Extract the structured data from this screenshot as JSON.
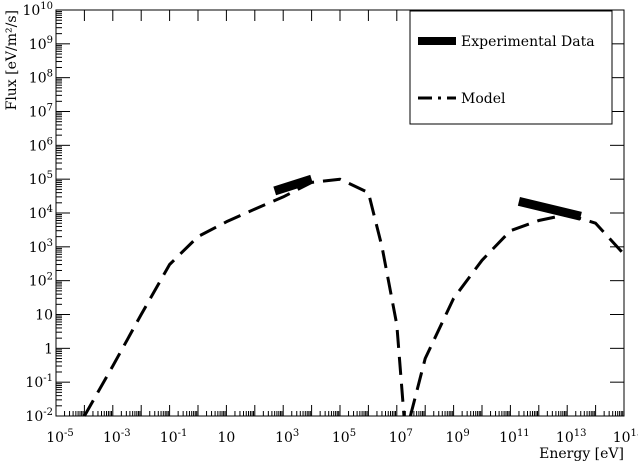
{
  "chart_data": {
    "type": "line",
    "title": "",
    "xlabel": "Energy [eV]",
    "ylabel": "Flux [eV/m²/s]",
    "x_scale": "log",
    "y_scale": "log",
    "xlim": [
      1e-05,
      1000000000000000.0
    ],
    "ylim": [
      0.01,
      10000000000.0
    ],
    "grid": false,
    "legend_position": "top-right",
    "x_ticks": [
      {
        "value": 1e-05,
        "base": "10",
        "exp": "-5"
      },
      {
        "value": 0.001,
        "base": "10",
        "exp": "-3"
      },
      {
        "value": 0.1,
        "base": "10",
        "exp": "-1"
      },
      {
        "value": 10,
        "base": "10",
        "exp": ""
      },
      {
        "value": 1000.0,
        "base": "10",
        "exp": "3"
      },
      {
        "value": 100000.0,
        "base": "10",
        "exp": "5"
      },
      {
        "value": 10000000.0,
        "base": "10",
        "exp": "7"
      },
      {
        "value": 1000000000.0,
        "base": "10",
        "exp": "9"
      },
      {
        "value": 100000000000.0,
        "base": "10",
        "exp": "11"
      },
      {
        "value": 10000000000000.0,
        "base": "10",
        "exp": "13"
      },
      {
        "value": 1000000000000000.0,
        "base": "10",
        "exp": "15"
      }
    ],
    "y_ticks": [
      {
        "value": 0.01,
        "base": "10",
        "exp": "-2"
      },
      {
        "value": 0.1,
        "base": "10",
        "exp": "-1"
      },
      {
        "value": 1,
        "base": "1",
        "exp": ""
      },
      {
        "value": 10,
        "base": "10",
        "exp": ""
      },
      {
        "value": 100.0,
        "base": "10",
        "exp": "2"
      },
      {
        "value": 1000.0,
        "base": "10",
        "exp": "3"
      },
      {
        "value": 10000.0,
        "base": "10",
        "exp": "4"
      },
      {
        "value": 100000.0,
        "base": "10",
        "exp": "5"
      },
      {
        "value": 1000000.0,
        "base": "10",
        "exp": "6"
      },
      {
        "value": 10000000.0,
        "base": "10",
        "exp": "7"
      },
      {
        "value": 100000000.0,
        "base": "10",
        "exp": "8"
      },
      {
        "value": 1000000000.0,
        "base": "10",
        "exp": "9"
      },
      {
        "value": 10000000000.0,
        "base": "10",
        "exp": "10"
      }
    ],
    "series": [
      {
        "name": "Experimental Data",
        "style": "thick-solid",
        "color": "#000000",
        "segments": [
          [
            [
              500.0,
              45000.0
            ],
            [
              10000.0,
              100000.0
            ]
          ],
          [
            [
              200000000000.0,
              22000.0
            ],
            [
              30000000000000.0,
              8000.0
            ]
          ]
        ]
      },
      {
        "name": "Model",
        "style": "dashed",
        "color": "#000000",
        "segments": [
          [
            [
              0.0001,
              0.01
            ],
            [
              0.001,
              0.3
            ],
            [
              0.01,
              10
            ],
            [
              0.1,
              300
            ],
            [
              1,
              2000
            ],
            [
              10,
              5500
            ],
            [
              100,
              13000.0
            ],
            [
              1000.0,
              30000.0
            ],
            [
              10000.0,
              80000.0
            ],
            [
              100000.0,
              100000.0
            ],
            [
              1000000.0,
              40000.0
            ],
            [
              3000000.0,
              1000
            ],
            [
              10000000.0,
              5
            ],
            [
              18000000.0,
              0.01
            ]
          ],
          [
            [
              30000000.0,
              0.01
            ],
            [
              100000000.0,
              0.5
            ],
            [
              1000000000.0,
              30
            ],
            [
              10000000000.0,
              400
            ],
            [
              100000000000.0,
              3000
            ],
            [
              1000000000000.0,
              6000
            ],
            [
              10000000000000.0,
              9000
            ],
            [
              100000000000000.0,
              5000
            ],
            [
              1000000000000000.0,
              600
            ]
          ]
        ]
      }
    ]
  }
}
